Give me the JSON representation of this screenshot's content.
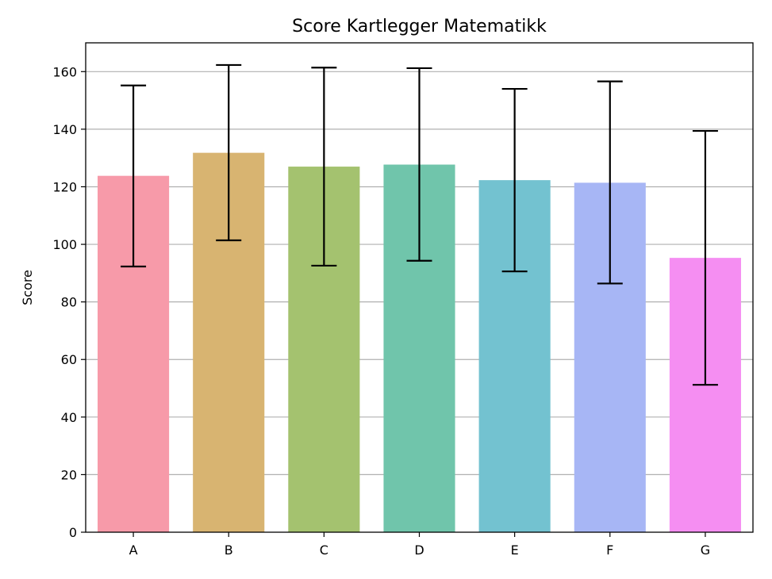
{
  "chart_data": {
    "type": "bar",
    "title": "Score Kartlegger Matematikk",
    "xlabel": "",
    "ylabel": "Score",
    "categories": [
      "A",
      "B",
      "C",
      "D",
      "E",
      "F",
      "G"
    ],
    "values": [
      123.8,
      131.8,
      127.0,
      127.7,
      122.3,
      121.4,
      95.3
    ],
    "error_low": [
      92.3,
      101.4,
      92.6,
      94.3,
      90.6,
      86.4,
      51.2
    ],
    "error_high": [
      155.2,
      162.3,
      161.4,
      161.2,
      154.0,
      156.6,
      139.4
    ],
    "colors": [
      "#f79aa9",
      "#d8b471",
      "#a4c26f",
      "#70c5ab",
      "#73c2d0",
      "#a7b6f5",
      "#f58ef2"
    ],
    "ylim": [
      0,
      170
    ],
    "yticks": [
      0,
      20,
      40,
      60,
      80,
      100,
      120,
      140,
      160
    ],
    "grid": "horizontal",
    "legend": "none"
  }
}
